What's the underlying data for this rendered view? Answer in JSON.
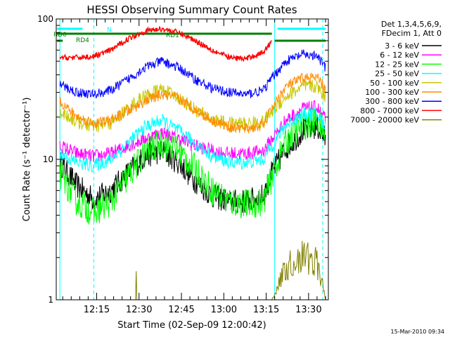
{
  "chart_data": {
    "type": "line",
    "title": "HESSI Observing Summary Count Rates",
    "xlabel": "Start Time (02-Sep-09 12:00:42)",
    "ylabel": "Count Rate (s⁻¹ detector⁻¹)",
    "yscale": "log",
    "xlim": [
      "12:00:42",
      "13:37:00"
    ],
    "ylim": [
      1,
      100
    ],
    "x_ticks": [
      "12:15",
      "12:30",
      "12:45",
      "13:00",
      "13:15",
      "13:30"
    ],
    "y_ticks": [
      "1",
      "10",
      "100"
    ],
    "legend": {
      "placement": "top-right outside",
      "header": [
        "Det 1,3,4,5,6,9,",
        "FDecim 1, Att 0"
      ]
    },
    "x": [
      "12:02",
      "12:08",
      "12:14",
      "12:20",
      "12:26",
      "12:32",
      "12:38",
      "12:44",
      "12:50",
      "12:56",
      "13:02",
      "13:08",
      "13:14",
      "13:17",
      "13:22",
      "13:28",
      "13:33",
      "13:36"
    ],
    "series": [
      {
        "name": "3 - 6 keV",
        "color": "#000000",
        "values": [
          9.5,
          6.5,
          5.2,
          6.0,
          8.0,
          10.5,
          11.5,
          9.5,
          7.0,
          5.5,
          5.0,
          5.0,
          5.5,
          8.0,
          12.0,
          16.0,
          17.0,
          14.0
        ]
      },
      {
        "name": "6 - 12 keV",
        "color": "#ff00ff",
        "values": [
          12.5,
          11.0,
          10.5,
          11.0,
          12.5,
          14.0,
          15.5,
          14.0,
          12.5,
          11.5,
          11.0,
          11.0,
          11.5,
          14.0,
          19.0,
          23.0,
          23.5,
          19.0
        ]
      },
      {
        "name": "12 - 25 keV",
        "color": "#00ff00",
        "values": [
          8.0,
          5.0,
          4.2,
          5.0,
          7.5,
          11.0,
          13.0,
          11.5,
          8.5,
          6.0,
          5.0,
          4.8,
          5.0,
          7.5,
          13.5,
          17.5,
          19.0,
          15.0
        ]
      },
      {
        "name": "25 - 50 keV",
        "color": "#00ffff",
        "values": [
          11.0,
          9.5,
          9.0,
          10.0,
          13.0,
          17.0,
          19.0,
          16.0,
          13.0,
          10.5,
          9.5,
          9.5,
          10.0,
          12.5,
          17.5,
          21.0,
          21.0,
          17.0
        ]
      },
      {
        "name": "50 - 100 keV",
        "color": "#c8c800",
        "values": [
          22.0,
          18.5,
          17.0,
          18.0,
          23.0,
          28.5,
          31.5,
          27.5,
          22.5,
          19.0,
          18.0,
          18.0,
          18.5,
          22.0,
          28.0,
          33.0,
          33.0,
          28.0
        ]
      },
      {
        "name": "100 - 300 keV",
        "color": "#ff8c00",
        "values": [
          26.0,
          20.0,
          18.0,
          19.0,
          22.0,
          26.0,
          29.0,
          27.0,
          22.5,
          19.0,
          17.0,
          16.5,
          17.5,
          23.0,
          33.0,
          38.0,
          38.0,
          32.0
        ]
      },
      {
        "name": "300 - 800 keV",
        "color": "#0000ff",
        "values": [
          34.0,
          30.0,
          29.0,
          31.0,
          37.0,
          45.0,
          50.0,
          45.0,
          37.0,
          32.0,
          30.0,
          29.0,
          31.0,
          38.0,
          50.0,
          56.0,
          54.0,
          45.0
        ]
      },
      {
        "name": "800 - 7000 keV",
        "color": "#ff0000",
        "values": [
          53.0,
          53.0,
          54.0,
          60.0,
          72.0,
          82.0,
          85.0,
          80.0,
          70.0,
          60.0,
          53.0,
          52.0,
          58.0,
          70.0,
          null,
          null,
          null,
          null
        ]
      },
      {
        "name": "7000 - 20000 keV",
        "color": "#808000",
        "values": [
          1.0,
          1.0,
          1.0,
          1.0,
          1.0,
          1.0,
          1.0,
          1.0,
          1.0,
          1.0,
          1.0,
          1.0,
          1.0,
          1.0,
          1.8,
          2.2,
          2.0,
          1.0
        ]
      }
    ],
    "annotations": [
      {
        "label": "N",
        "color": "#00ffff"
      },
      {
        "label": "RD0",
        "color": "#008000"
      },
      {
        "label": "RD4",
        "color": "#008000"
      },
      {
        "label": "RD1",
        "color": "#008000"
      }
    ],
    "footer_timestamp": "15-Mar-2010 09:34"
  }
}
